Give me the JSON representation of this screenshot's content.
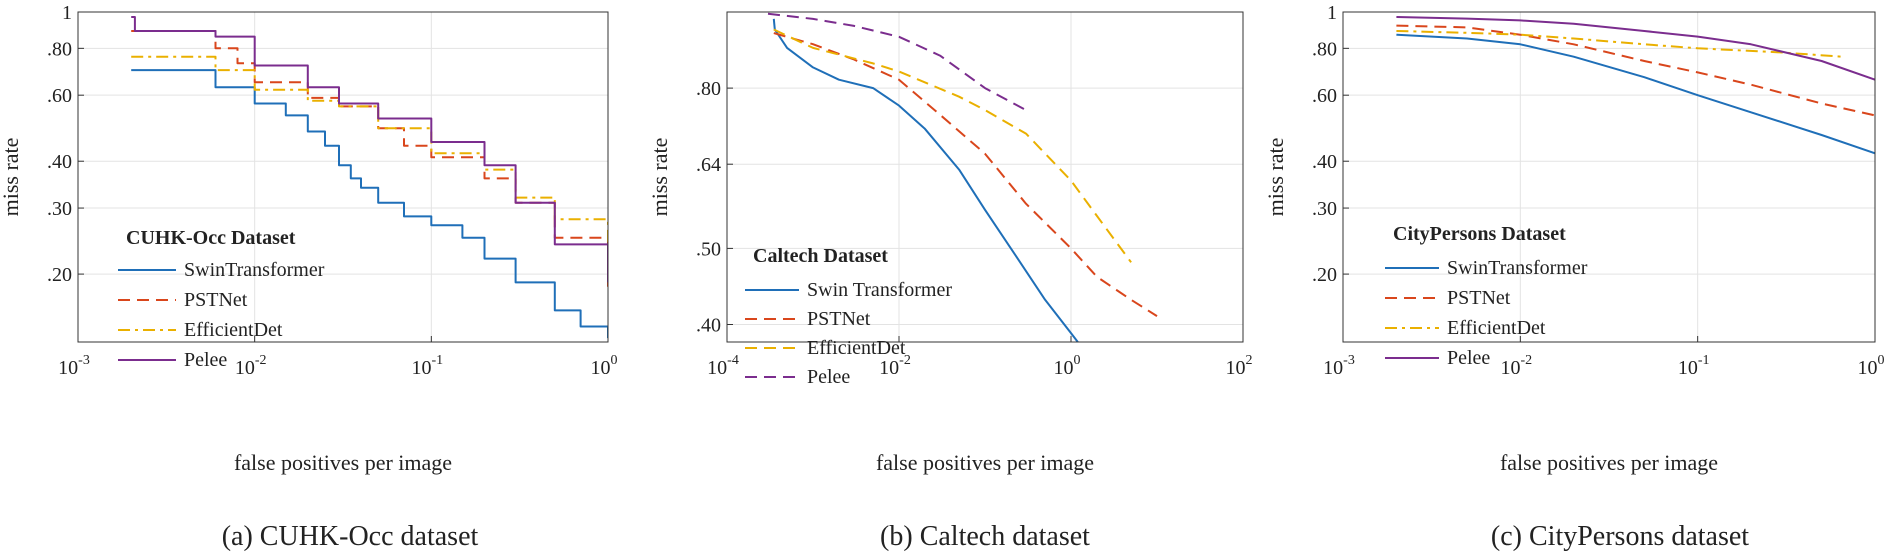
{
  "colors": {
    "blue": "#1f6fb8",
    "red": "#d9461c",
    "orange": "#eab000",
    "purple": "#7b2d8e"
  },
  "chart_data": [
    {
      "type": "line",
      "caption": "(a) CUHK-Occ dataset",
      "xlabel": "false positives per image",
      "ylabel": "miss rate",
      "x_scale": "log",
      "y_scale": "log",
      "xlim": [
        0.001,
        1
      ],
      "ylim": [
        0.1318,
        1
      ],
      "x_ticks": [
        {
          "value": 0.001,
          "base": "10",
          "exp": "-3"
        },
        {
          "value": 0.01,
          "base": "10",
          "exp": "-2"
        },
        {
          "value": 0.1,
          "base": "10",
          "exp": "-1"
        },
        {
          "value": 1,
          "base": "10",
          "exp": "0"
        }
      ],
      "y_ticks": [
        {
          "value": 1,
          "label": "1"
        },
        {
          "value": 0.8,
          "label": ".80"
        },
        {
          "value": 0.6,
          "label": ".60"
        },
        {
          "value": 0.4,
          "label": ".40"
        },
        {
          "value": 0.3,
          "label": ".30"
        },
        {
          "value": 0.2,
          "label": ".20"
        }
      ],
      "grid": true,
      "legend": {
        "title": "CUHK-Occ Dataset",
        "placement": "bottom-left"
      },
      "series": [
        {
          "name": "SwinTransformer",
          "color": "#1f6fb8",
          "dash": "solid",
          "step": true,
          "x": [
            0.002,
            0.006,
            0.01,
            0.015,
            0.02,
            0.025,
            0.03,
            0.035,
            0.04,
            0.05,
            0.07,
            0.1,
            0.15,
            0.2,
            0.3,
            0.5,
            0.7,
            1.0
          ],
          "y": [
            0.7,
            0.63,
            0.57,
            0.53,
            0.48,
            0.44,
            0.39,
            0.36,
            0.34,
            0.31,
            0.285,
            0.27,
            0.25,
            0.22,
            0.19,
            0.16,
            0.145,
            0.135
          ]
        },
        {
          "name": "PSTNet",
          "color": "#d9461c",
          "dash": "dashed",
          "step": true,
          "x": [
            0.002,
            0.006,
            0.008,
            0.01,
            0.02,
            0.03,
            0.05,
            0.07,
            0.1,
            0.2,
            0.3,
            0.5,
            1.0
          ],
          "y": [
            0.89,
            0.8,
            0.73,
            0.65,
            0.59,
            0.56,
            0.49,
            0.44,
            0.41,
            0.36,
            0.31,
            0.25,
            0.185
          ]
        },
        {
          "name": "EfficientDet",
          "color": "#eab000",
          "dash": "dashdot",
          "step": true,
          "x": [
            0.002,
            0.006,
            0.01,
            0.02,
            0.03,
            0.05,
            0.1,
            0.2,
            0.3,
            0.5,
            1.0
          ],
          "y": [
            0.76,
            0.7,
            0.62,
            0.58,
            0.56,
            0.49,
            0.42,
            0.38,
            0.32,
            0.28,
            0.235
          ]
        },
        {
          "name": "Pelee",
          "color": "#7b2d8e",
          "dash": "solid",
          "step": true,
          "x": [
            0.002,
            0.0021,
            0.006,
            0.01,
            0.02,
            0.03,
            0.05,
            0.1,
            0.2,
            0.3,
            0.5,
            1.0
          ],
          "y": [
            0.97,
            0.89,
            0.86,
            0.72,
            0.63,
            0.57,
            0.52,
            0.45,
            0.39,
            0.31,
            0.24,
            0.19
          ]
        }
      ]
    },
    {
      "type": "line",
      "caption": "(b) Caltech dataset",
      "xlabel": "false positives per image",
      "ylabel": "miss rate",
      "x_scale": "log",
      "y_scale": "log",
      "xlim": [
        0.0001,
        100
      ],
      "ylim": [
        0.38,
        1
      ],
      "x_ticks": [
        {
          "value": 0.0001,
          "base": "10",
          "exp": "-4"
        },
        {
          "value": 0.01,
          "base": "10",
          "exp": "-2"
        },
        {
          "value": 1,
          "base": "10",
          "exp": "0"
        },
        {
          "value": 100,
          "base": "10",
          "exp": "2"
        }
      ],
      "y_ticks": [
        {
          "value": 0.8,
          "label": ".80"
        },
        {
          "value": 0.64,
          "label": ".64"
        },
        {
          "value": 0.5,
          "label": ".50"
        },
        {
          "value": 0.4,
          "label": ".40"
        }
      ],
      "grid": true,
      "legend": {
        "title": "Caltech Dataset",
        "placement": "bottom-left"
      },
      "series": [
        {
          "name": "Swin Transformer",
          "color": "#1f6fb8",
          "dash": "solid",
          "step": false,
          "x": [
            0.00035,
            0.00036,
            0.0005,
            0.001,
            0.002,
            0.005,
            0.01,
            0.02,
            0.05,
            0.1,
            0.2,
            0.5,
            1.0,
            1.2
          ],
          "y": [
            0.98,
            0.95,
            0.9,
            0.85,
            0.82,
            0.8,
            0.76,
            0.71,
            0.63,
            0.56,
            0.5,
            0.43,
            0.39,
            0.38
          ]
        },
        {
          "name": "PSTNet",
          "color": "#d9461c",
          "dash": "dashed",
          "step": false,
          "x": [
            0.00035,
            0.001,
            0.003,
            0.01,
            0.03,
            0.1,
            0.3,
            1.0,
            2.0,
            5.0,
            10.0
          ],
          "y": [
            0.94,
            0.91,
            0.87,
            0.82,
            0.74,
            0.66,
            0.57,
            0.5,
            0.46,
            0.43,
            0.41
          ]
        },
        {
          "name": "EfficientDet",
          "color": "#eab000",
          "dash": "dashed",
          "step": false,
          "x": [
            0.00035,
            0.001,
            0.005,
            0.01,
            0.05,
            0.1,
            0.3,
            1.0,
            2.0,
            5.0
          ],
          "y": [
            0.95,
            0.9,
            0.86,
            0.84,
            0.78,
            0.75,
            0.7,
            0.61,
            0.55,
            0.48
          ]
        },
        {
          "name": "Pelee",
          "color": "#7b2d8e",
          "dash": "dashed",
          "step": false,
          "x": [
            0.0003,
            0.001,
            0.003,
            0.01,
            0.03,
            0.1,
            0.3
          ],
          "y": [
            0.995,
            0.98,
            0.96,
            0.93,
            0.88,
            0.8,
            0.75
          ]
        }
      ]
    },
    {
      "type": "line",
      "caption": "(c) CityPersons dataset",
      "xlabel": "false positives per image",
      "ylabel": "miss rate",
      "x_scale": "log",
      "y_scale": "log",
      "xlim": [
        0.001,
        1
      ],
      "ylim": [
        0.1318,
        1
      ],
      "x_ticks": [
        {
          "value": 0.001,
          "base": "10",
          "exp": "-3"
        },
        {
          "value": 0.01,
          "base": "10",
          "exp": "-2"
        },
        {
          "value": 0.1,
          "base": "10",
          "exp": "-1"
        },
        {
          "value": 1,
          "base": "10",
          "exp": "0"
        }
      ],
      "y_ticks": [
        {
          "value": 1,
          "label": "1"
        },
        {
          "value": 0.8,
          "label": ".80"
        },
        {
          "value": 0.6,
          "label": ".60"
        },
        {
          "value": 0.4,
          "label": ".40"
        },
        {
          "value": 0.3,
          "label": ".30"
        },
        {
          "value": 0.2,
          "label": ".20"
        }
      ],
      "grid": true,
      "legend": {
        "title": "CityPersons Dataset",
        "placement": "bottom-left"
      },
      "series": [
        {
          "name": "SwinTransformer",
          "color": "#1f6fb8",
          "dash": "solid",
          "step": false,
          "x": [
            0.002,
            0.005,
            0.01,
            0.02,
            0.05,
            0.1,
            0.2,
            0.5,
            1.0
          ],
          "y": [
            0.87,
            0.85,
            0.82,
            0.76,
            0.67,
            0.6,
            0.54,
            0.47,
            0.42
          ]
        },
        {
          "name": "PSTNet",
          "color": "#d9461c",
          "dash": "dashed",
          "step": false,
          "x": [
            0.002,
            0.005,
            0.01,
            0.02,
            0.05,
            0.1,
            0.2,
            0.5,
            1.0
          ],
          "y": [
            0.92,
            0.91,
            0.87,
            0.82,
            0.74,
            0.69,
            0.64,
            0.57,
            0.53
          ]
        },
        {
          "name": "EfficientDet",
          "color": "#eab000",
          "dash": "dashdot",
          "step": false,
          "x": [
            0.002,
            0.005,
            0.01,
            0.02,
            0.05,
            0.1,
            0.3,
            0.65
          ],
          "y": [
            0.89,
            0.88,
            0.87,
            0.85,
            0.82,
            0.8,
            0.78,
            0.76
          ]
        },
        {
          "name": "Pelee",
          "color": "#7b2d8e",
          "dash": "solid",
          "step": false,
          "x": [
            0.002,
            0.005,
            0.01,
            0.02,
            0.05,
            0.1,
            0.2,
            0.5,
            1.0
          ],
          "y": [
            0.97,
            0.96,
            0.95,
            0.93,
            0.89,
            0.86,
            0.82,
            0.74,
            0.66
          ]
        }
      ]
    }
  ]
}
